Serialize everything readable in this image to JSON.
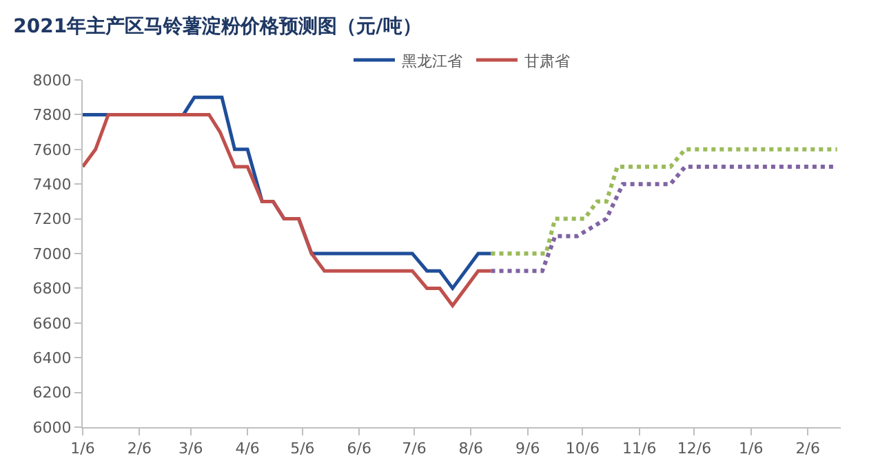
{
  "chart_data": {
    "type": "line",
    "title": "2021年主产区马铃薯淀粉价格预测图（元/吨）",
    "xlim": [
      "2021-01-06",
      "2022-02-24"
    ],
    "xticks": [
      {
        "value": "2021-01-06",
        "label": "1/6"
      },
      {
        "value": "2021-02-06",
        "label": "2/6"
      },
      {
        "value": "2021-03-06",
        "label": "3/6"
      },
      {
        "value": "2021-04-06",
        "label": "4/6"
      },
      {
        "value": "2021-05-06",
        "label": "5/6"
      },
      {
        "value": "2021-06-06",
        "label": "6/6"
      },
      {
        "value": "2021-07-06",
        "label": "7/6"
      },
      {
        "value": "2021-08-06",
        "label": "8/6"
      },
      {
        "value": "2021-09-06",
        "label": "9/6"
      },
      {
        "value": "2021-10-06",
        "label": "10/6"
      },
      {
        "value": "2021-11-06",
        "label": "11/6"
      },
      {
        "value": "2021-12-06",
        "label": "12/6"
      },
      {
        "value": "2022-01-06",
        "label": "1/6"
      },
      {
        "value": "2022-02-06",
        "label": "2/6"
      }
    ],
    "ylim": [
      6000,
      8000
    ],
    "yticks": [
      6000,
      6200,
      6400,
      6600,
      6800,
      7000,
      7200,
      7400,
      7600,
      7800,
      8000
    ],
    "legend": "top",
    "marker": "none",
    "series": [
      {
        "name": "黑龙江省",
        "color": "#1f4e99",
        "line_style": "solid",
        "x": [
          "2021-01-06",
          "2021-03-02",
          "2021-03-08",
          "2021-03-23",
          "2021-03-30",
          "2021-04-06",
          "2021-04-14",
          "2021-04-20",
          "2021-04-26",
          "2021-05-04",
          "2021-05-11",
          "2021-07-05",
          "2021-07-13",
          "2021-07-20",
          "2021-07-27",
          "2021-08-10",
          "2021-08-17"
        ],
        "values": [
          7800,
          7800,
          7900,
          7900,
          7600,
          7600,
          7300,
          7300,
          7200,
          7200,
          7000,
          7000,
          6900,
          6900,
          6800,
          7000,
          7000
        ]
      },
      {
        "name": "甘肃省",
        "color": "#c0504d",
        "line_style": "solid",
        "x": [
          "2021-01-06",
          "2021-01-13",
          "2021-01-20",
          "2021-03-16",
          "2021-03-22",
          "2021-03-30",
          "2021-04-06",
          "2021-04-14",
          "2021-04-20",
          "2021-04-26",
          "2021-05-04",
          "2021-05-11",
          "2021-05-18",
          "2021-07-05",
          "2021-07-13",
          "2021-07-20",
          "2021-07-27",
          "2021-08-10",
          "2021-08-17"
        ],
        "values": [
          7500,
          7600,
          7800,
          7800,
          7700,
          7500,
          7500,
          7300,
          7300,
          7200,
          7200,
          7000,
          6900,
          6900,
          6800,
          6800,
          6700,
          6900,
          6900
        ]
      },
      {
        "color": "#9bbb59",
        "line_style": "dotted",
        "x": [
          "2021-08-17",
          "2021-09-16",
          "2021-09-21",
          "2021-10-07",
          "2021-10-14",
          "2021-10-19",
          "2021-10-25",
          "2021-11-23",
          "2021-12-01",
          "2022-02-22"
        ],
        "values": [
          7000,
          7000,
          7200,
          7200,
          7300,
          7300,
          7500,
          7500,
          7600,
          7600
        ]
      },
      {
        "color": "#8064a2",
        "line_style": "dotted",
        "x": [
          "2021-08-17",
          "2021-09-14",
          "2021-09-21",
          "2021-10-03",
          "2021-10-19",
          "2021-10-28",
          "2021-11-23",
          "2021-12-01",
          "2022-02-22"
        ],
        "values": [
          6900,
          6900,
          7100,
          7100,
          7200,
          7400,
          7400,
          7500,
          7500
        ]
      }
    ]
  }
}
